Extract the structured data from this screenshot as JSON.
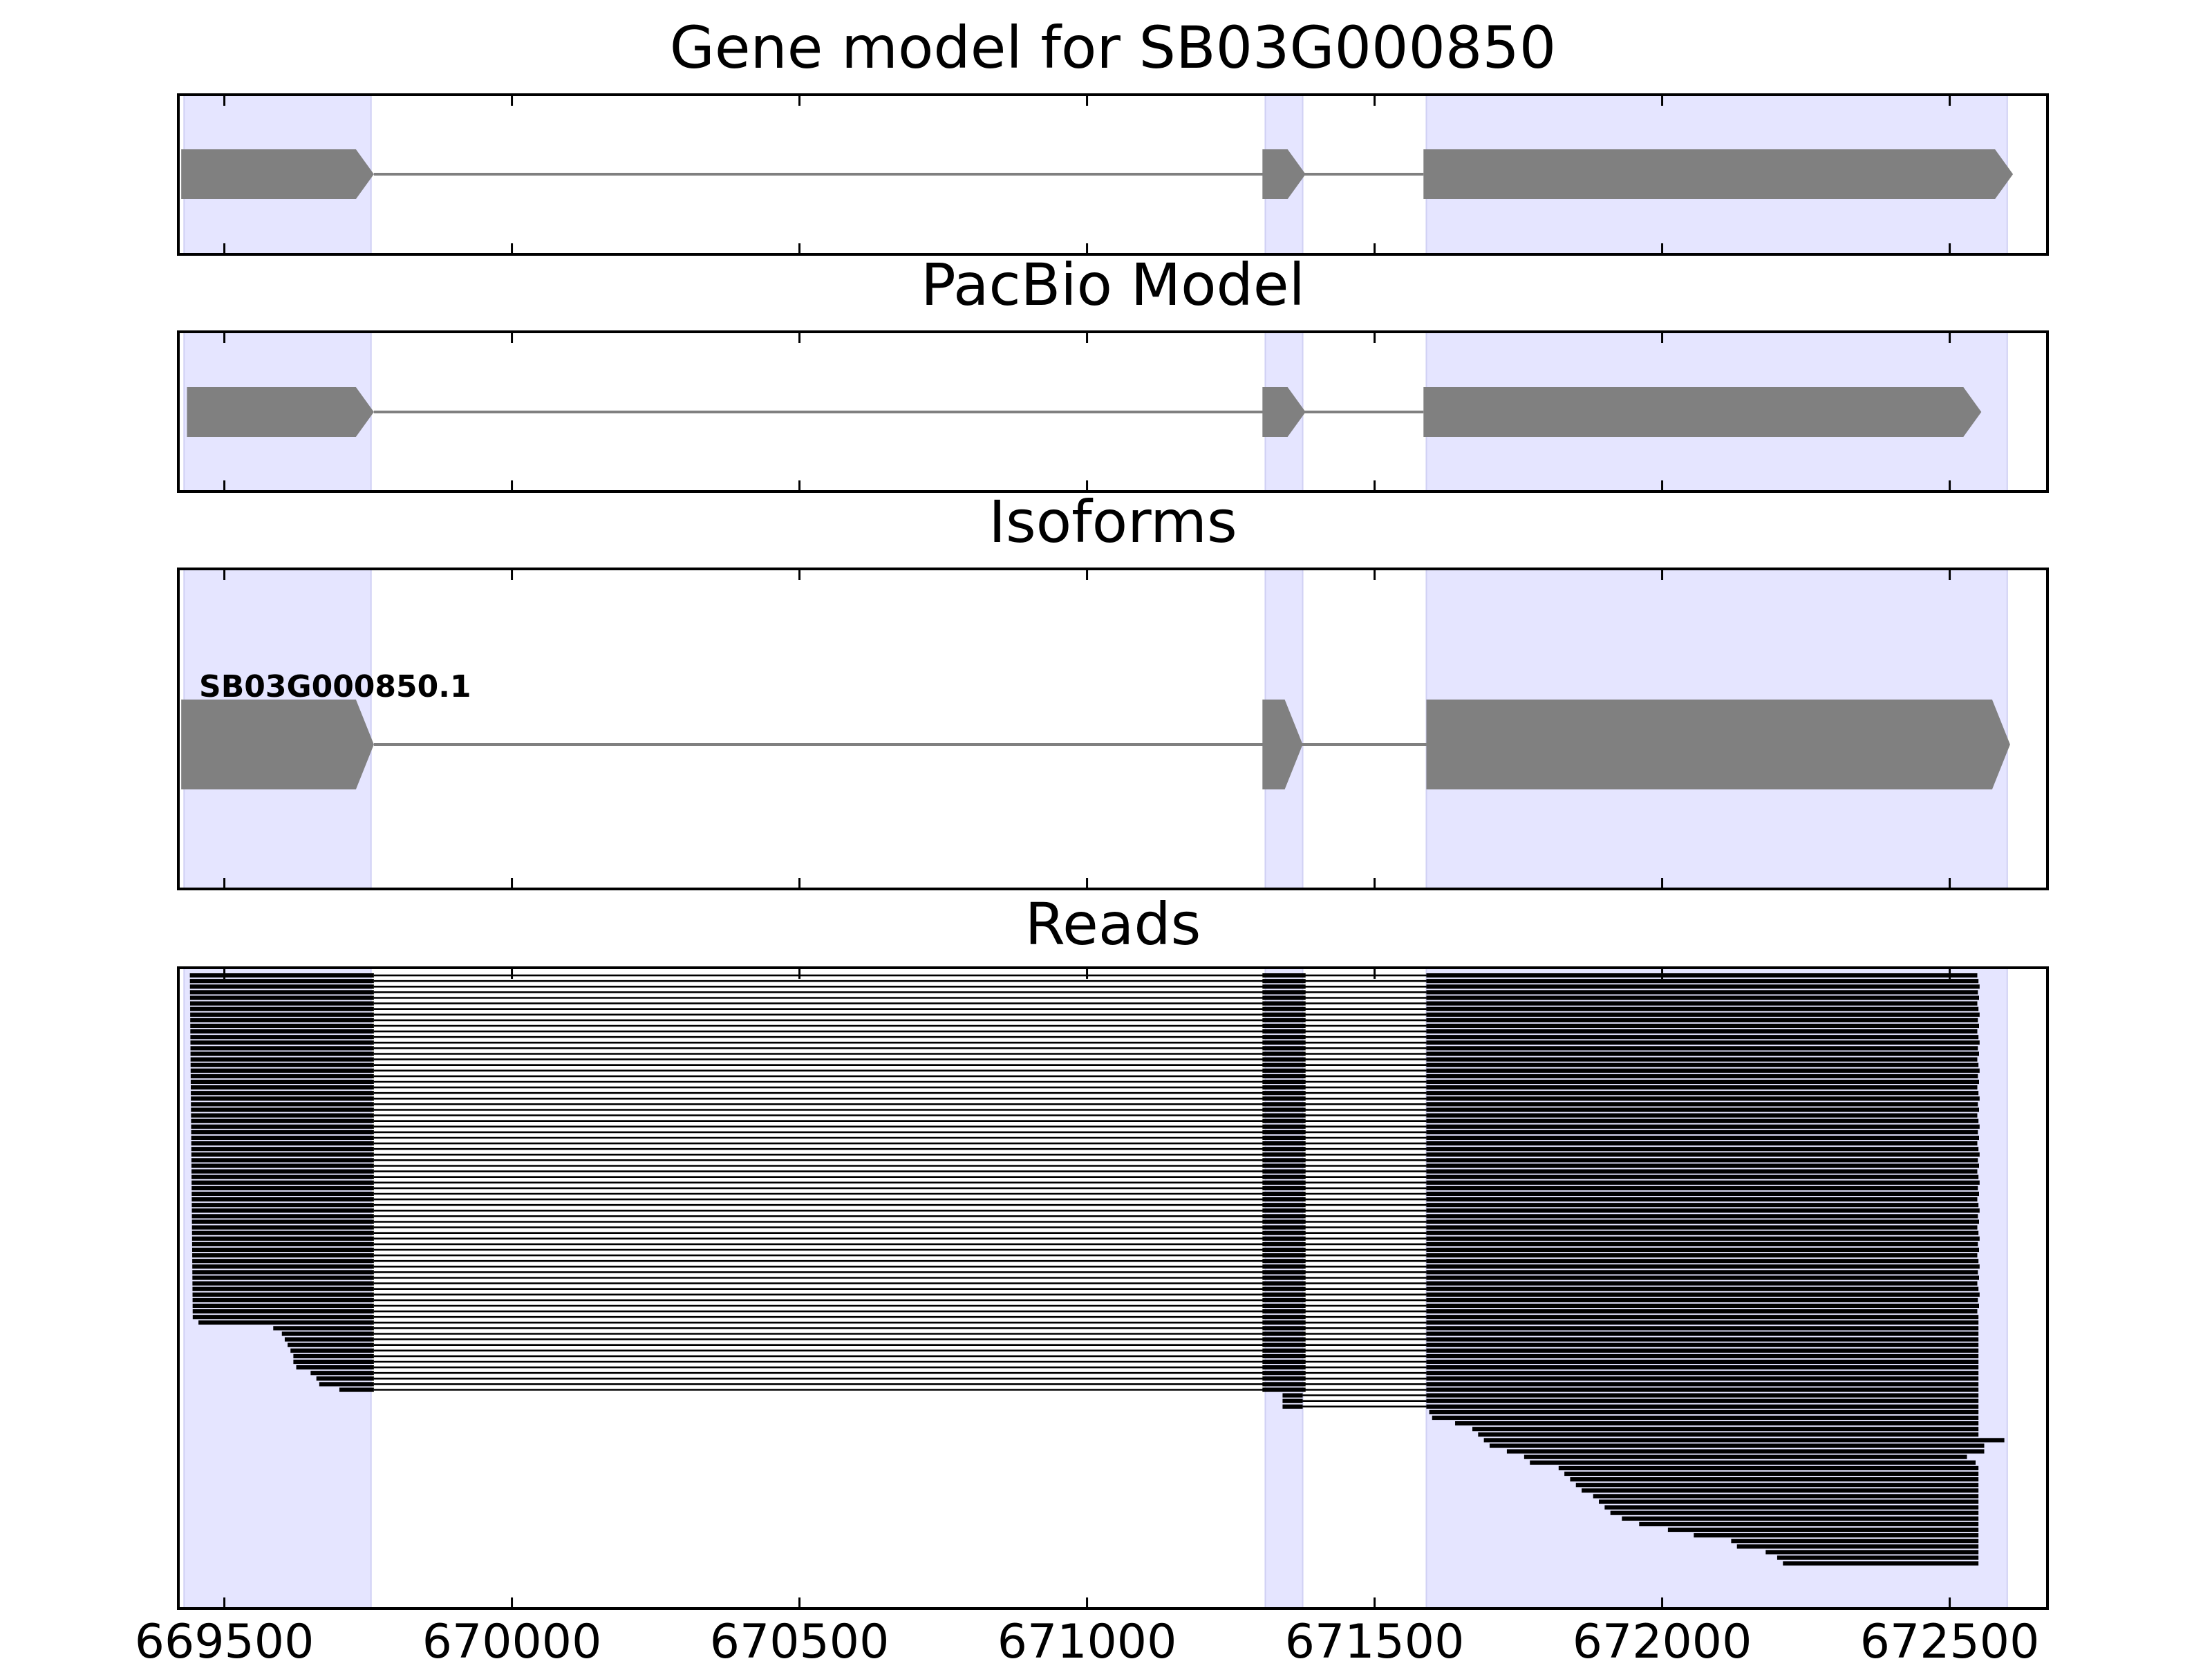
{
  "chart_data": {
    "type": "gene-model",
    "x_range": [
      669420,
      672670
    ],
    "x_ticks": [
      669500,
      670000,
      670500,
      671000,
      671500,
      672000,
      672500
    ],
    "x_tick_labels": [
      "669500",
      "670000",
      "670500",
      "671000",
      "671500",
      "672000",
      "672500"
    ],
    "highlight_regions": [
      [
        669430,
        669755
      ],
      [
        671310,
        671375
      ],
      [
        671590,
        672600
      ]
    ],
    "colors": {
      "highlight": "#e5e5ff",
      "model": "#808080",
      "reads": "#000000",
      "axes": "#000000"
    },
    "panels": [
      {
        "id": "gene-model",
        "title": "Gene model for SB03G000850",
        "strand": "+",
        "exons": [
          [
            669425,
            669760
          ],
          [
            671305,
            671380
          ],
          [
            671585,
            672610
          ]
        ]
      },
      {
        "id": "pacbio-model",
        "title": "PacBio Model",
        "strand": "+",
        "exons": [
          [
            669435,
            669760
          ],
          [
            671305,
            671380
          ],
          [
            671585,
            672555
          ]
        ]
      },
      {
        "id": "isoforms",
        "title": "Isoforms",
        "isoforms": [
          {
            "label": "SB03G000850.1",
            "strand": "+",
            "exons": [
              [
                669425,
                669760
              ],
              [
                671305,
                671375
              ],
              [
                671590,
                672605
              ]
            ]
          }
        ]
      },
      {
        "id": "reads",
        "title": "Reads",
        "groups": [
          {
            "count": 62,
            "exon1_start": 669440,
            "exon1_start_end": 669445,
            "exon1_end": 669760,
            "exon2": [
              671305,
              671380
            ],
            "exon3_start": 671590,
            "exon3_end": 672550
          },
          {
            "count": 13,
            "exon1_starts": [
              669455,
              669585,
              669600,
              669605,
              669610,
              669615,
              669620,
              669620,
              669625,
              669650,
              669660,
              669665,
              669700
            ],
            "exon1_end": 669760,
            "exon2": [
              671305,
              671380
            ],
            "exon3_start": 671590,
            "exon3_end": 672550
          },
          {
            "count": 3,
            "exon2": [
              671340,
              671375
            ],
            "exon3_start": 671590,
            "exon3_end": 672550
          },
          {
            "count": 28,
            "exon3_starts": [
              671595,
              671600,
              671640,
              671670,
              671680,
              671690,
              671700,
              671730,
              671760,
              671770,
              671820,
              671830,
              671840,
              671850,
              671860,
              671880,
              671890,
              671900,
              671910,
              671930,
              671960,
              672010,
              672055,
              672120,
              672130,
              672180,
              672200,
              672210
            ],
            "exon3_ends": [
              672550,
              672550,
              672550,
              672550,
              672550,
              672595,
              672560,
              672560,
              672530,
              672545,
              672550,
              672550,
              672550,
              672550,
              672550,
              672550,
              672550,
              672550,
              672550,
              672550,
              672550,
              672550,
              672550,
              672550,
              672550,
              672550,
              672550,
              672550
            ]
          }
        ]
      }
    ]
  }
}
